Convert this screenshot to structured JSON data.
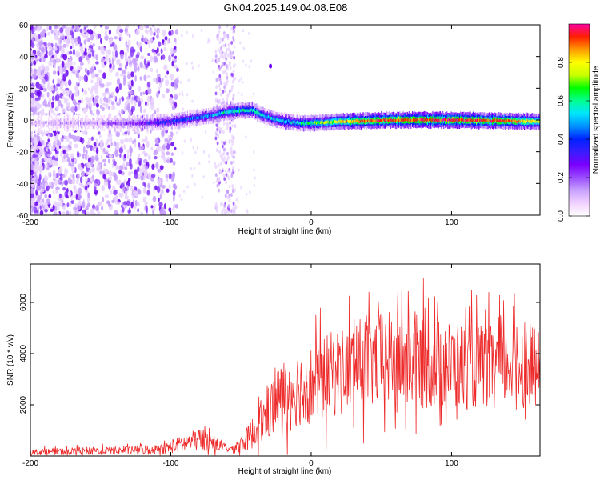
{
  "title": "GN04.2025.149.04.08.E08",
  "colors": {
    "snr_line": "#ee2b2b",
    "axis": "#000000",
    "colormap": [
      "#ffffff",
      "#f2d2ff",
      "#c9a2ff",
      "#9a4cff",
      "#7a00ff",
      "#3a1cff",
      "#0022ff",
      "#0090ff",
      "#00e5ff",
      "#00ff90",
      "#00ff00",
      "#c8ff00",
      "#ffff00",
      "#ff9a00",
      "#ff2000",
      "#ff00a0"
    ]
  },
  "chart_data": [
    {
      "name": "spectrogram",
      "type": "heatmap",
      "xlabel": "Height of straight line (km)",
      "ylabel": "Frequency (Hz)",
      "xlim": [
        -200,
        163
      ],
      "ylim": [
        -60,
        60
      ],
      "x_ticks": [
        -200,
        -100,
        0,
        100
      ],
      "y_ticks": [
        -60,
        -40,
        -20,
        0,
        20,
        40,
        60
      ],
      "colorbar": {
        "label": "Normalized spectral amplitude",
        "range": [
          0,
          1
        ],
        "ticks": [
          0.0,
          0.2,
          0.4,
          0.6,
          0.8
        ]
      },
      "trace_center_hz": [
        {
          "x": -200,
          "y": -2
        },
        {
          "x": -170,
          "y": -2
        },
        {
          "x": -140,
          "y": -2
        },
        {
          "x": -120,
          "y": -2
        },
        {
          "x": -100,
          "y": -1
        },
        {
          "x": -85,
          "y": 1
        },
        {
          "x": -70,
          "y": 3
        },
        {
          "x": -60,
          "y": 5
        },
        {
          "x": -50,
          "y": 6
        },
        {
          "x": -42,
          "y": 6
        },
        {
          "x": -35,
          "y": 3
        },
        {
          "x": -25,
          "y": 0
        },
        {
          "x": -10,
          "y": -2
        },
        {
          "x": 0,
          "y": -2
        },
        {
          "x": 20,
          "y": -1
        },
        {
          "x": 60,
          "y": 0
        },
        {
          "x": 100,
          "y": 0
        },
        {
          "x": 163,
          "y": -1
        }
      ],
      "trace_amplitude": [
        {
          "x": -200,
          "v": 0.12
        },
        {
          "x": -150,
          "v": 0.18
        },
        {
          "x": -120,
          "v": 0.28
        },
        {
          "x": -100,
          "v": 0.4
        },
        {
          "x": -80,
          "v": 0.45
        },
        {
          "x": -60,
          "v": 0.55
        },
        {
          "x": -45,
          "v": 0.6
        },
        {
          "x": -30,
          "v": 0.5
        },
        {
          "x": -10,
          "v": 0.55
        },
        {
          "x": 10,
          "v": 0.7
        },
        {
          "x": 30,
          "v": 0.85
        },
        {
          "x": 60,
          "v": 0.9
        },
        {
          "x": 100,
          "v": 0.92
        },
        {
          "x": 140,
          "v": 0.88
        },
        {
          "x": 163,
          "v": 0.75
        }
      ]
    },
    {
      "name": "snr",
      "type": "line",
      "xlabel": "Height of straight line (km)",
      "ylabel": "SNR (10 * v/v)",
      "xlim": [
        -200,
        163
      ],
      "ylim": [
        0,
        7500
      ],
      "x_ticks": [
        -200,
        -100,
        0,
        100
      ],
      "y_ticks": [
        2000,
        4000,
        6000
      ],
      "series": [
        {
          "envelope_x": [
            -200,
            -160,
            -130,
            -110,
            -100,
            -90,
            -80,
            -75,
            -70,
            -60,
            -55,
            -45,
            -35,
            -25,
            -15,
            -5,
            5,
            15,
            30,
            50,
            70,
            90,
            110,
            130,
            150,
            163
          ],
          "mean_y": [
            150,
            200,
            220,
            260,
            350,
            500,
            650,
            700,
            500,
            300,
            250,
            700,
            1300,
            2100,
            2600,
            2700,
            2900,
            3200,
            3500,
            3800,
            3700,
            3600,
            3500,
            3500,
            3600,
            3400
          ],
          "spread_y": [
            120,
            150,
            160,
            200,
            250,
            350,
            450,
            500,
            300,
            150,
            150,
            500,
            900,
            1300,
            1500,
            1500,
            1600,
            1700,
            1800,
            1900,
            1900,
            1800,
            1700,
            1600,
            1600,
            1500
          ]
        }
      ]
    }
  ]
}
